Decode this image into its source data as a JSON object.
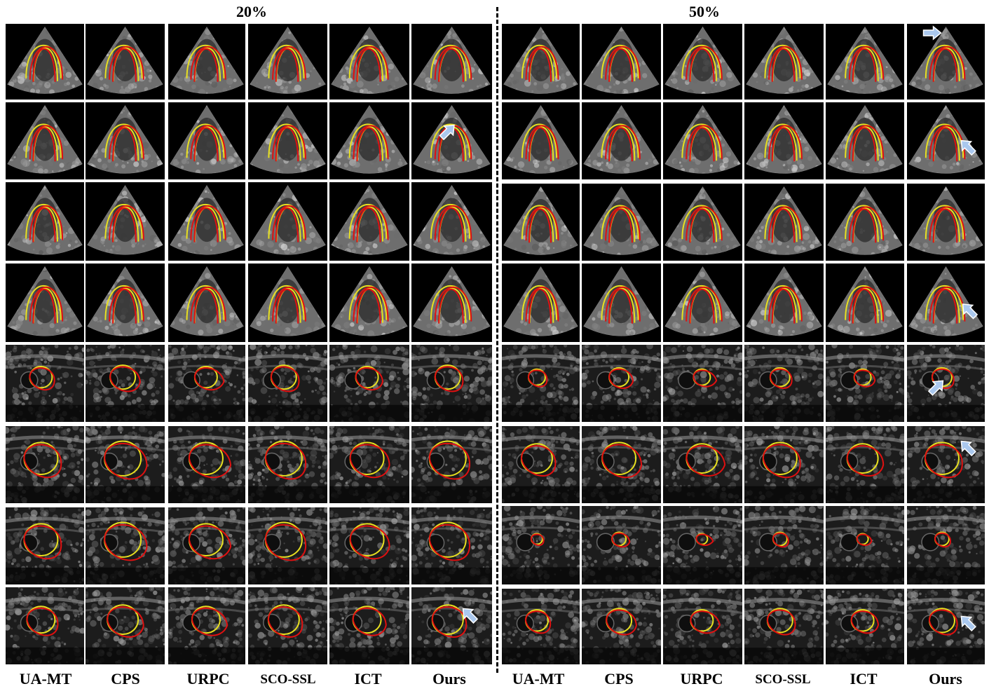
{
  "panels": [
    {
      "id": "left",
      "header": "20%"
    },
    {
      "id": "right",
      "header": "50%"
    }
  ],
  "method_labels": [
    "UA-MT",
    "CPS",
    "URPC",
    "SCO-SSL",
    "ICT",
    "Ours"
  ],
  "colors": {
    "background": "#ffffff",
    "ground_truth_contour": "#e8e020",
    "prediction_contour": "#e01010",
    "arrow": "#aac8ee",
    "ultrasound_black": "#000000"
  },
  "row_types": [
    "echo",
    "echo",
    "echo",
    "echo",
    "thyroid",
    "thyroid",
    "thyroid",
    "thyroid"
  ],
  "icons": {
    "highlight": "arrow-icon"
  }
}
